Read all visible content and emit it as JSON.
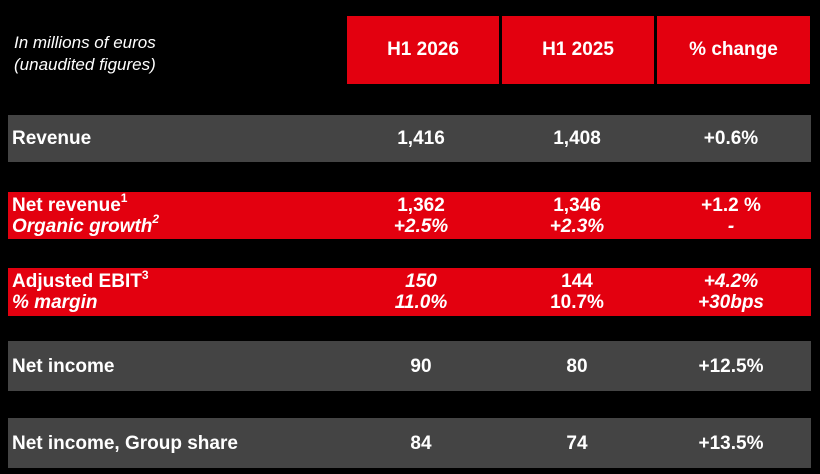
{
  "caption": {
    "line1": "In millions of euros",
    "line2": "(unaudited figures)"
  },
  "headers": [
    "H1 2026",
    "H1 2025",
    "% change"
  ],
  "colors": {
    "accent_red": "#e3000f",
    "row_gray": "#444444",
    "background": "#000000"
  },
  "rows": {
    "revenue": {
      "label": "Revenue",
      "h1_2026": "1,416",
      "h1_2025": "1,408",
      "change": "+0.6%"
    },
    "net_revenue": {
      "label": "Net revenue",
      "label_sup": "1",
      "sub_label": "Organic growth",
      "sub_label_sup": "2",
      "h1_2026": "1,362",
      "h1_2026_sub": "+2.5%",
      "h1_2025": "1,346",
      "h1_2025_sub": "+2.3%",
      "change": "+1.2 %",
      "change_sub": "-"
    },
    "adjusted_ebit": {
      "label": "Adjusted EBIT",
      "label_sup": "3",
      "sub_label": "% margin",
      "h1_2026": "150",
      "h1_2026_sub": "11.0%",
      "h1_2025": "144",
      "h1_2025_sub": "10.7%",
      "change": "+4.2%",
      "change_sub": "+30bps"
    },
    "net_income": {
      "label": "Net income",
      "h1_2026": "90",
      "h1_2025": "80",
      "change": "+12.5%"
    },
    "net_income_group": {
      "label": "Net income, Group share",
      "h1_2026": "84",
      "h1_2025": "74",
      "change": "+13.5%"
    }
  }
}
